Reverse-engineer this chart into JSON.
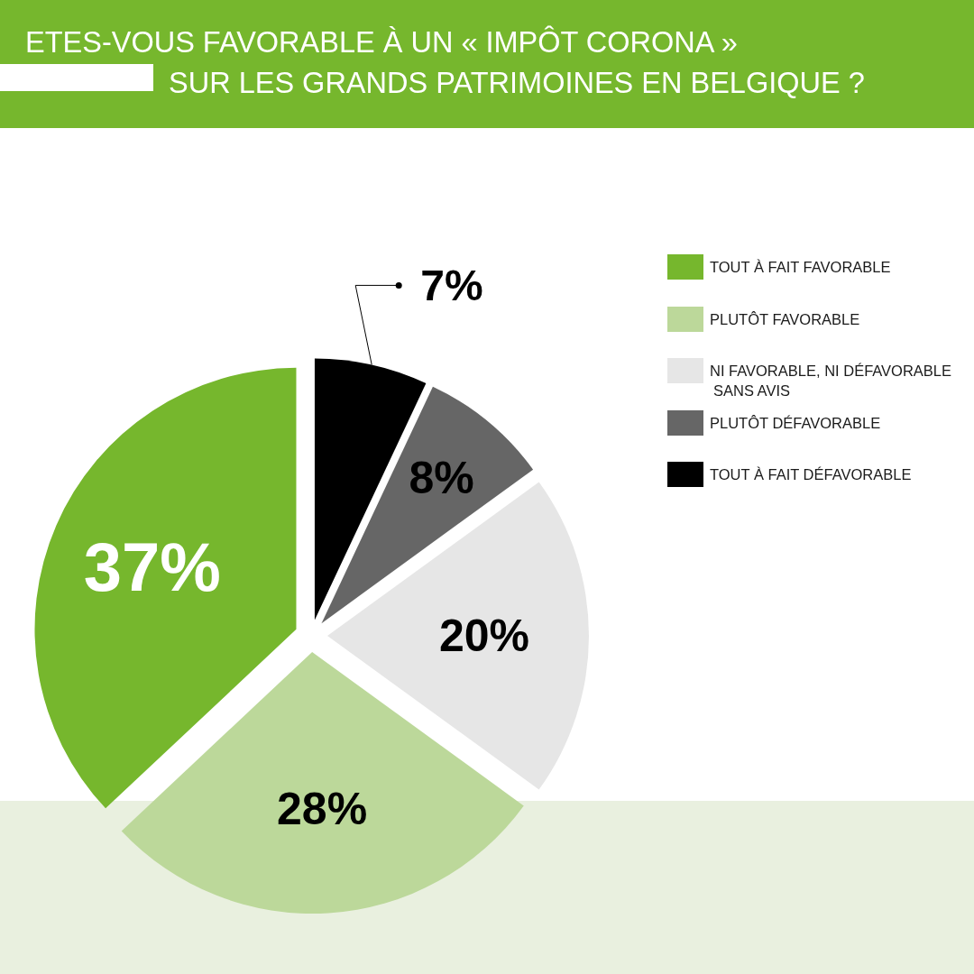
{
  "chart_data": {
    "type": "pie",
    "title": "ETES-VOUS FAVORABLE À UN « IMPÔT CORONA »\nSUR LES GRANDS PATRIMOINES EN BELGIQUE ?",
    "categories": [
      "TOUT À FAIT FAVORABLE",
      "PLUTÔT FAVORABLE",
      "NI FAVORABLE, NI DÉFAVORABLE\nSANS AVIS",
      "PLUTÔT DÉFAVORABLE",
      "TOUT À FAIT DÉFAVORABLE"
    ],
    "values": [
      37,
      28,
      20,
      8,
      7
    ],
    "colors": [
      "#76b72d",
      "#bcd89a",
      "#e6e6e6",
      "#666666",
      "#000000"
    ],
    "value_labels": [
      "37%",
      "28%",
      "20%",
      "8%",
      "7%"
    ],
    "legend": "top right"
  }
}
